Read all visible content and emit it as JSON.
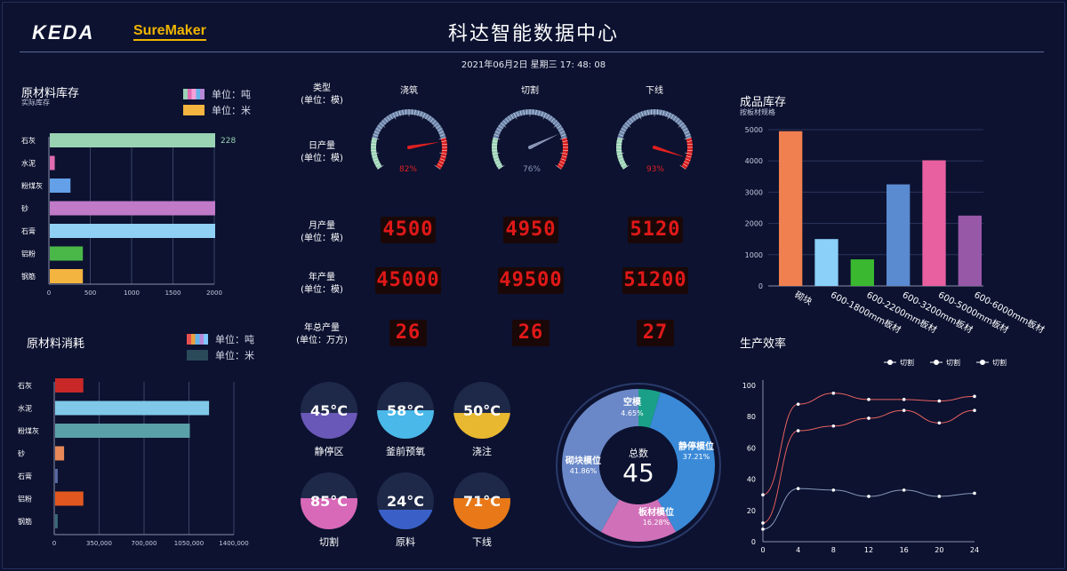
{
  "header": {
    "logo": "KEDA",
    "brand": "SureMaker",
    "title": "科达智能数据中心",
    "datetime": "2021年06月2日 星期三 17: 48: 08"
  },
  "raw_stock": {
    "title": "原材料库存",
    "subtitle": "实际库存",
    "legend": [
      {
        "label": "单位：吨",
        "colors": [
          "#9ad2b4",
          "#e06bb0",
          "#f4a0d8",
          "#64b4e8",
          "#b888d8"
        ]
      },
      {
        "label": "单位：米",
        "colors": [
          "#f4b440"
        ]
      }
    ],
    "bar_value_label": "228"
  },
  "raw_consume": {
    "title": "原材料消耗",
    "legend": [
      {
        "label": "单位：吨",
        "colors": [
          "#e85050",
          "#e8a040",
          "#64b4e8",
          "#b888d8",
          "#80c8ff"
        ]
      },
      {
        "label": "单位：米",
        "colors": [
          "#2a4a5a"
        ]
      }
    ]
  },
  "production": {
    "type_label_1": "类型",
    "type_label_2": "(单位：模)",
    "columns": [
      "浇筑",
      "切割",
      "下线"
    ],
    "daily_label_1": "日产量",
    "daily_label_2": "(单位：模)",
    "gauges": [
      {
        "percent": 82,
        "label": "82%",
        "color": "#e02020"
      },
      {
        "percent": 76,
        "label": "76%",
        "color": "#8a96b8"
      },
      {
        "percent": 93,
        "label": "93%",
        "color": "#e02020"
      }
    ],
    "monthly_label_1": "月产量",
    "monthly_label_2": "(单位：模)",
    "monthly": [
      "4500",
      "4950",
      "5120"
    ],
    "yearly_label_1": "年产量",
    "yearly_label_2": "(单位：模)",
    "yearly": [
      "45000",
      "49500",
      "51200"
    ],
    "total_label_1": "年总产量",
    "total_label_2": "(单位：万方)",
    "total": [
      "26",
      "26",
      "27"
    ]
  },
  "temperatures": [
    {
      "value": "45°C",
      "label": "静停区",
      "level": 0.45,
      "color": "#6a58b8"
    },
    {
      "value": "58°C",
      "label": "釜前预氧",
      "level": 0.5,
      "color": "#4ab8e8"
    },
    {
      "value": "50°C",
      "label": "浇注",
      "level": 0.45,
      "color": "#e8b830"
    },
    {
      "value": "85°C",
      "label": "切割",
      "level": 0.55,
      "color": "#d868b8"
    },
    {
      "value": "24°C",
      "label": "原料",
      "level": 0.35,
      "color": "#3a60c8"
    },
    {
      "value": "71°C",
      "label": "下线",
      "level": 0.55,
      "color": "#e87818"
    }
  ],
  "donut": {
    "center_label": "总数",
    "center_value": "45",
    "segments": [
      {
        "name": "空模",
        "percent_label": "4.65%",
        "value": 4.65,
        "color": "#1aa088"
      },
      {
        "name": "静停模位",
        "percent_label": "37.21%",
        "value": 37.21,
        "color": "#3a8ad8"
      },
      {
        "name": "板材模位",
        "percent_label": "16.28%",
        "value": 16.28,
        "color": "#d070b8"
      },
      {
        "name": "砌块模位",
        "percent_label": "41.86%",
        "value": 41.86,
        "color": "#6a88c8"
      }
    ]
  },
  "finished_stock": {
    "title": "成品库存",
    "subtitle": "按板材规格"
  },
  "efficiency": {
    "title": "生产效率"
  },
  "chart_data": [
    {
      "type": "bar",
      "orientation": "horizontal",
      "categories": [
        "石灰",
        "水泥",
        "粉煤灰",
        "砂",
        "石膏",
        "铝粉",
        "钢筋"
      ],
      "values": [
        2000,
        60,
        250,
        2000,
        2000,
        400,
        400
      ],
      "colors": [
        "#9ad2b4",
        "#e06bb0",
        "#64a0e8",
        "#c07ac8",
        "#8fd0f4",
        "#4ab848",
        "#f4b440"
      ],
      "xticks": [
        "0",
        "500",
        "1000",
        "1500",
        "2000"
      ],
      "xlim": [
        0,
        2000
      ]
    },
    {
      "type": "bar",
      "orientation": "horizontal",
      "categories": [
        "石灰",
        "水泥",
        "粉煤灰",
        "砂",
        "石膏",
        "铝粉",
        "钢筋"
      ],
      "values": [
        220000,
        1200000,
        1050000,
        70000,
        20000,
        220000,
        20000
      ],
      "colors": [
        "#c82828",
        "#80c8e8",
        "#5aa0a8",
        "#e88858",
        "#5a6aa8",
        "#e05820",
        "#3a6a78"
      ],
      "xticks": [
        "0",
        "350,000",
        "700,000",
        "1050,000",
        "1400,000"
      ],
      "xlim": [
        0,
        1400000
      ]
    },
    {
      "type": "bar",
      "categories": [
        "砌块",
        "600-1800mm板材",
        "600-2200mm板材",
        "600-3200mm板材",
        "600-5000mm板材",
        "600-6000mm板材"
      ],
      "values": [
        4950,
        1500,
        850,
        3250,
        4020,
        2250
      ],
      "colors": [
        "#f08050",
        "#8ad0f8",
        "#3ab830",
        "#5a8ad0",
        "#e860a0",
        "#9858a8"
      ],
      "yticks": [
        "0",
        "1000",
        "2000",
        "3000",
        "4000",
        "5000"
      ],
      "ylim": [
        0,
        5000
      ]
    },
    {
      "type": "line",
      "x": [
        0,
        4,
        8,
        12,
        16,
        20,
        24
      ],
      "xticks": [
        "0",
        "4",
        "8",
        "12",
        "16",
        "20",
        "24"
      ],
      "yticks": [
        "0",
        "20",
        "40",
        "60",
        "80",
        "100"
      ],
      "ylim": [
        0,
        100
      ],
      "series": [
        {
          "name": "切割",
          "values": [
            30,
            88,
            95,
            91,
            91,
            90,
            93
          ],
          "color": "#e86060"
        },
        {
          "name": "切割",
          "values": [
            12,
            71,
            74,
            79,
            84,
            76,
            84
          ],
          "color": "#e86060"
        },
        {
          "name": "切割",
          "values": [
            8,
            34,
            33,
            29,
            33,
            29,
            31
          ],
          "color": "#8898b8"
        }
      ]
    }
  ]
}
